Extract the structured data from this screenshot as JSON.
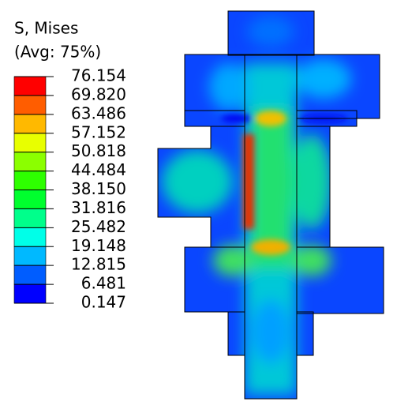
{
  "legend": {
    "title": "S, Mises",
    "subtitle": "(Avg: 75%)",
    "levels": [
      "76.154",
      "69.820",
      "63.486",
      "57.152",
      "50.818",
      "44.484",
      "38.150",
      "31.816",
      "25.482",
      "19.148",
      "12.815",
      "6.481",
      "0.147"
    ],
    "colors": [
      "#ff0000",
      "#ff5d00",
      "#ffb900",
      "#e8ff00",
      "#8bff00",
      "#2eff00",
      "#00ff2e",
      "#00ff8b",
      "#00ffe8",
      "#00b9ff",
      "#005dff",
      "#0000ff"
    ]
  }
}
